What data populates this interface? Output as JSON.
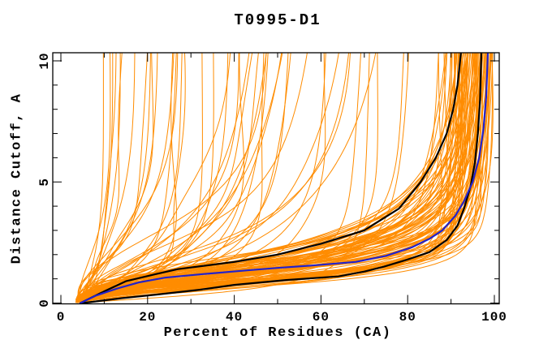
{
  "window": {
    "title": "T0995-D1"
  },
  "chart_data": {
    "type": "line",
    "title": "T0995-D1",
    "xlabel": "Percent of Residues (CA)",
    "ylabel": "Distance Cutoff, A",
    "xlim": [
      -1.9,
      101.1
    ],
    "ylim": [
      0,
      10.35
    ],
    "x_major_ticks": [
      0,
      20,
      40,
      60,
      80,
      100
    ],
    "x_minor_ticks": [
      10,
      30,
      50,
      70,
      90
    ],
    "y_major_ticks": [
      0,
      5,
      10
    ],
    "y_minor_ticks": [
      1,
      2,
      3,
      4,
      6,
      7,
      8,
      9
    ],
    "grid": false,
    "legend": "none",
    "colors": {
      "ensemble": "#ff8c00",
      "selected": "#000000",
      "reference": "#2222cc",
      "axis": "#000000",
      "background": "#ffffff"
    },
    "series": [
      {
        "name": "all-models-band",
        "role": "ensemble-good",
        "color": "#ff8c00",
        "width": 1,
        "family": "band",
        "count": 88,
        "seed": 11,
        "p0": [
          3.5,
          6.0
        ],
        "pmax": [
          87,
          100
        ],
        "pmax_skew": 0.45,
        "d50": [
          0.75,
          2.35
        ],
        "sigma": [
          0.26,
          0.58
        ]
      },
      {
        "name": "all-models-fan",
        "role": "ensemble-poor",
        "color": "#ff8c00",
        "width": 1,
        "family": "fan",
        "count": 46,
        "seed": 23,
        "p0": [
          3.5,
          6.0
        ],
        "pmax": [
          8,
          88
        ],
        "pmax_skew": 1.15,
        "d50": [
          0.45,
          3.3
        ],
        "sigma": [
          0.35,
          0.8
        ]
      },
      {
        "name": "selected-model-1",
        "role": "highlight-black",
        "color": "#000000",
        "width": 2.2,
        "points": [
          [
            4.5,
            0
          ],
          [
            9,
            0.4
          ],
          [
            15,
            0.9
          ],
          [
            22,
            1.2
          ],
          [
            27,
            1.4
          ],
          [
            40,
            1.7
          ],
          [
            50,
            2.0
          ],
          [
            60,
            2.45
          ],
          [
            70,
            3.0
          ],
          [
            78,
            3.9
          ],
          [
            83,
            5.0
          ],
          [
            86.5,
            6.0
          ],
          [
            89,
            7.0
          ],
          [
            90.5,
            8.0
          ],
          [
            91.5,
            9.0
          ],
          [
            92.3,
            10.35
          ]
        ]
      },
      {
        "name": "selected-model-2",
        "role": "highlight-black",
        "color": "#000000",
        "width": 2.2,
        "points": [
          [
            5,
            0
          ],
          [
            14,
            0.2
          ],
          [
            22,
            0.35
          ],
          [
            32,
            0.55
          ],
          [
            40,
            0.75
          ],
          [
            52,
            0.95
          ],
          [
            64,
            1.1
          ],
          [
            70,
            1.3
          ],
          [
            74.5,
            1.5
          ],
          [
            80,
            1.8
          ],
          [
            85,
            2.1
          ],
          [
            89,
            2.6
          ],
          [
            91.5,
            3.2
          ],
          [
            93,
            3.9
          ],
          [
            94.5,
            4.8
          ],
          [
            95.5,
            5.8
          ],
          [
            96.2,
            7.0
          ],
          [
            96.7,
            8.4
          ],
          [
            97.0,
            10.35
          ]
        ]
      },
      {
        "name": "reference-model",
        "role": "highlight-blue",
        "color": "#2222cc",
        "width": 2.2,
        "points": [
          [
            4.5,
            0
          ],
          [
            8,
            0.3
          ],
          [
            13,
            0.6
          ],
          [
            18,
            0.85
          ],
          [
            24,
            1.05
          ],
          [
            33,
            1.2
          ],
          [
            43,
            1.35
          ],
          [
            50,
            1.45
          ],
          [
            58,
            1.55
          ],
          [
            68,
            1.7
          ],
          [
            75,
            1.95
          ],
          [
            81,
            2.3
          ],
          [
            85,
            2.65
          ],
          [
            88,
            3.0
          ],
          [
            91,
            3.6
          ],
          [
            93,
            4.2
          ],
          [
            95,
            5.0
          ],
          [
            96.5,
            6.0
          ],
          [
            97.5,
            7.2
          ],
          [
            98.1,
            8.5
          ],
          [
            98.5,
            10.35
          ]
        ]
      }
    ]
  }
}
